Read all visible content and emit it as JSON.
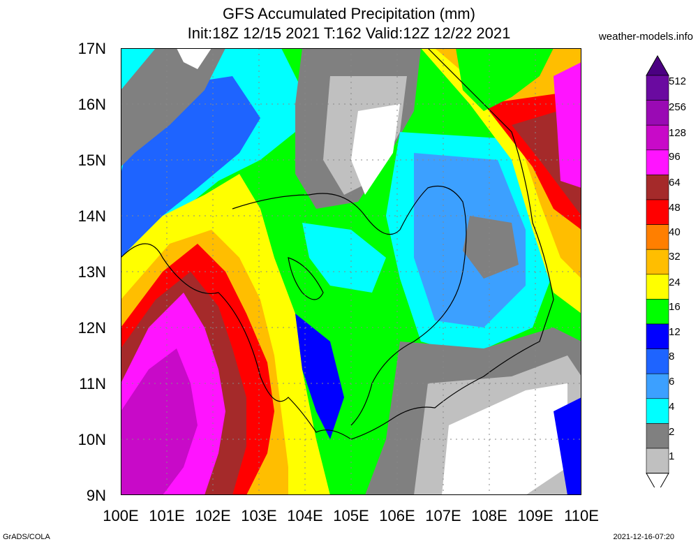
{
  "title": {
    "line1": "GFS Accumulated Precipitation (mm)",
    "line2": "Init:18Z 12/15 2021 T:162 Valid:12Z 12/22 2021"
  },
  "credit": "weather-models.info",
  "footer": {
    "left": "GrADS/COLA",
    "right": "2021-12-16-07:20"
  },
  "map": {
    "lat_labels": [
      "17N",
      "16N",
      "15N",
      "14N",
      "13N",
      "12N",
      "11N",
      "10N",
      "9N"
    ],
    "lon_labels": [
      "100E",
      "101E",
      "102E",
      "103E",
      "104E",
      "105E",
      "106E",
      "107E",
      "108E",
      "109E",
      "110E"
    ],
    "lat_range": [
      9,
      17
    ],
    "lon_range": [
      100,
      110
    ],
    "gridlines": true
  },
  "colorbar": {
    "levels": [
      "512",
      "256",
      "128",
      "96",
      "64",
      "48",
      "40",
      "32",
      "24",
      "16",
      "12",
      "8",
      "6",
      "4",
      "2",
      "1"
    ],
    "colors": [
      "#6a0aa0",
      "#9a0ab4",
      "#c80ac8",
      "#ff14ff",
      "#a52a2a",
      "#ff0000",
      "#ff7f00",
      "#ffbe00",
      "#ffff00",
      "#00ff00",
      "#0000ff",
      "#1e64ff",
      "#3ca0ff",
      "#00ffff",
      "#808080",
      "#c0c0c0"
    ],
    "top_color": "#4b0082",
    "bottom_color": "#ffffff"
  }
}
